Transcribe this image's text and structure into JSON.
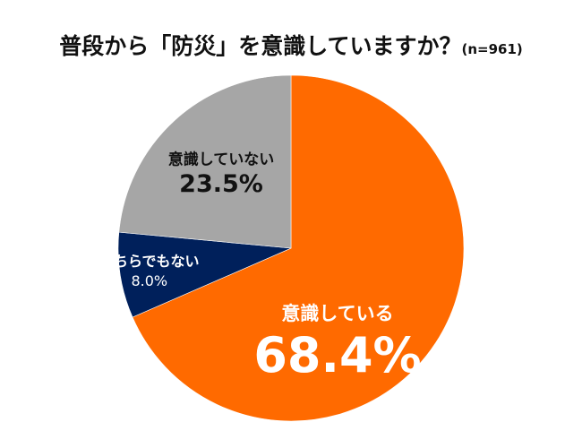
{
  "chart_data": {
    "type": "pie",
    "title": "普段から「防災」を意識していますか？",
    "subtitle": "(n=961)",
    "slices": [
      {
        "label": "意識している",
        "value": 68.4,
        "value_label": "68.4%",
        "color": "#ff6a00",
        "label_color": "#ffffff"
      },
      {
        "label": "どちらでもない",
        "value": 8.0,
        "value_label": "8.0%",
        "color": "#00205b",
        "label_color": "#ffffff"
      },
      {
        "label": "意識していない",
        "value": 23.5,
        "value_label": "23.5%",
        "color": "#a6a6a6",
        "label_color": "#111111"
      }
    ],
    "start": "12 o'clock",
    "direction": "clockwise"
  }
}
